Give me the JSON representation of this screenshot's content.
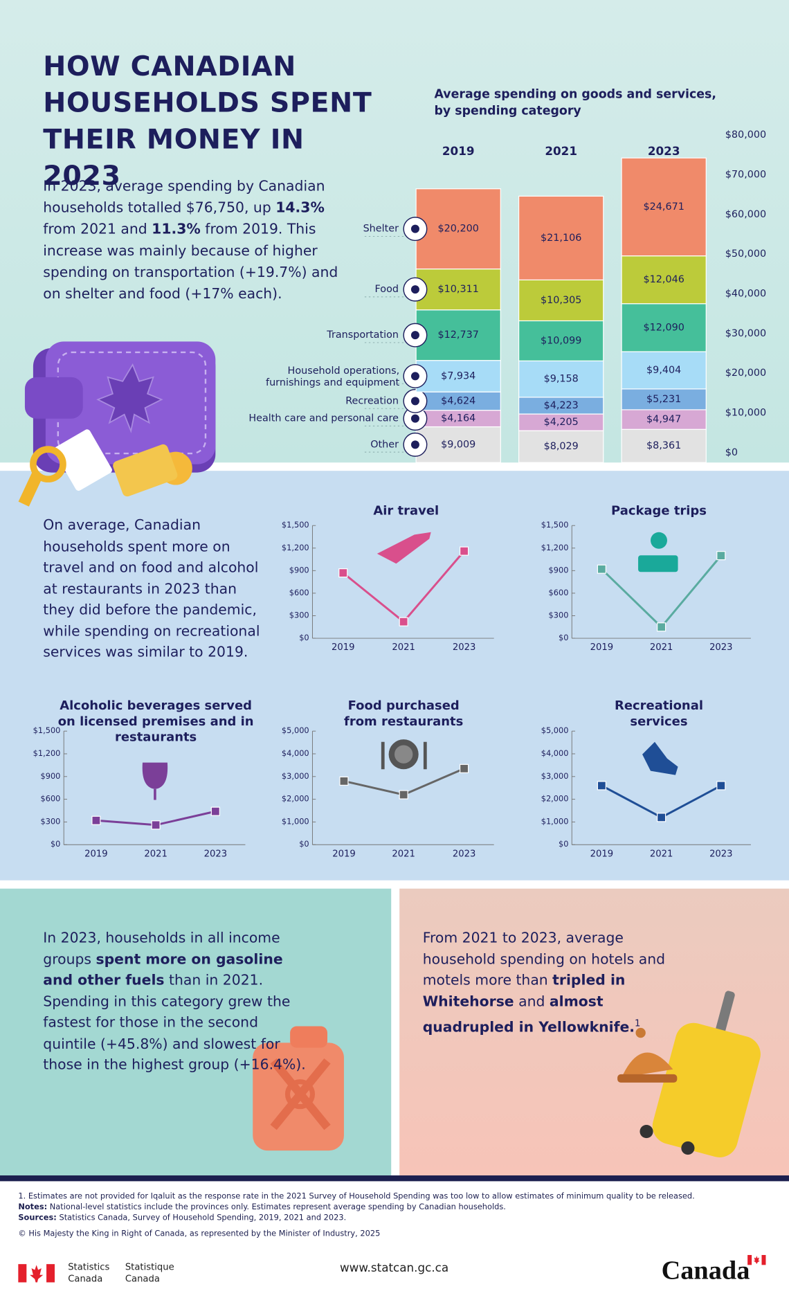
{
  "header": {
    "title": "HOW CANADIAN HOUSEHOLDS SPENT THEIR MONEY IN 2023",
    "intro": [
      {
        "text": "In 2023, average spending by Canadian households totalled $76,750, up ",
        "style": "normal"
      },
      {
        "text": "14.3%",
        "style": "bold"
      },
      {
        "text": " from 2021 and ",
        "style": "normal"
      },
      {
        "text": "11.3%",
        "style": "bold"
      },
      {
        "text": " from 2019. This increase was mainly because of higher spending on transportation (+19.7%) and on shelter and food (+17% each).",
        "style": "normal"
      }
    ]
  },
  "travel_text": "On average, Canadian households spent more on travel and on food and alcohol at restaurants in 2023 than they did before the pandemic, while spending on recreational services was similar to 2019.",
  "panels": {
    "fuel": [
      {
        "text": "In 2023, households in all income groups ",
        "style": "normal"
      },
      {
        "text": "spent more on gasoline and other fuels",
        "style": "bold"
      },
      {
        "text": " than in 2021. Spending in this category grew the fastest for those in the second quintile (+45.8%) and slowest for those in the highest group (+16.4%).",
        "style": "normal"
      }
    ],
    "hotels": [
      {
        "text": "From 2021 to 2023, average household spending on hotels and motels more than ",
        "style": "normal"
      },
      {
        "text": "tripled in Whitehorse",
        "style": "bold"
      },
      {
        "text": " and ",
        "style": "normal"
      },
      {
        "text": "almost quadrupled in Yellowknife.",
        "style": "bold"
      },
      {
        "text": "1",
        "style": "sup"
      }
    ]
  },
  "chart_data": [
    {
      "type": "bar",
      "stacked": true,
      "title": "Average spending on goods and services, by spending category",
      "categories": [
        "2019",
        "2021",
        "2023"
      ],
      "ylim": [
        0,
        80000
      ],
      "yticks": [
        {
          "value": 0,
          "label": "$0"
        },
        {
          "value": 10000,
          "label": "$10,000"
        },
        {
          "value": 20000,
          "label": "$20,000"
        },
        {
          "value": 30000,
          "label": "$30,000"
        },
        {
          "value": 40000,
          "label": "$40,000"
        },
        {
          "value": 50000,
          "label": "$50,000"
        },
        {
          "value": 60000,
          "label": "$60,000"
        },
        {
          "value": 70000,
          "label": "$70,000"
        },
        {
          "value": 80000,
          "label": "$80,000"
        }
      ],
      "series": [
        {
          "name": "Shelter",
          "color": "#f08a6a",
          "values": [
            20200,
            21106,
            24671
          ],
          "value_labels": [
            "$20,200",
            "$21,106",
            "$24,671"
          ]
        },
        {
          "name": "Food",
          "color": "#bccb3a",
          "values": [
            10311,
            10305,
            12046
          ],
          "value_labels": [
            "$10,311",
            "$10,305",
            "$12,046"
          ]
        },
        {
          "name": "Transportation",
          "color": "#45bf9a",
          "values": [
            12737,
            10099,
            12090
          ],
          "value_labels": [
            "$12,737",
            "$10,099",
            "$12,090"
          ]
        },
        {
          "name": "Household operations, furnishings and equipment",
          "color": "#a7dcf7",
          "values": [
            7934,
            9158,
            9404
          ],
          "value_labels": [
            "$7,934",
            "$9,158",
            "$9,404"
          ]
        },
        {
          "name": "Recreation",
          "color": "#7aaee0",
          "values": [
            4624,
            4223,
            5231
          ],
          "value_labels": [
            "$4,624",
            "$4,223",
            "$5,231"
          ]
        },
        {
          "name": "Health care and personal care",
          "color": "#d7a8d4",
          "values": [
            4164,
            4205,
            4947
          ],
          "value_labels": [
            "$4,164",
            "$4,205",
            "$4,947"
          ]
        },
        {
          "name": "Other",
          "color": "#e2e2e2",
          "values": [
            9009,
            8029,
            8361
          ],
          "value_labels": [
            "$9,009",
            "$8,029",
            "$8,361"
          ]
        }
      ]
    },
    {
      "type": "line",
      "title": "Air travel",
      "color": "#d94f8c",
      "categories": [
        "2019",
        "2021",
        "2023"
      ],
      "values": [
        870,
        220,
        1160
      ],
      "ylim": [
        0,
        1500
      ],
      "yticks": [
        {
          "value": 0,
          "label": "$0"
        },
        {
          "value": 300,
          "label": "$300"
        },
        {
          "value": 600,
          "label": "$600"
        },
        {
          "value": 900,
          "label": "$900"
        },
        {
          "value": 1200,
          "label": "$1,200"
        },
        {
          "value": 1500,
          "label": "$1,500"
        }
      ]
    },
    {
      "type": "line",
      "title": "Package trips",
      "color": "#5aaba0",
      "categories": [
        "2019",
        "2021",
        "2023"
      ],
      "values": [
        920,
        150,
        1100
      ],
      "ylim": [
        0,
        1500
      ],
      "yticks": [
        {
          "value": 0,
          "label": "$0"
        },
        {
          "value": 300,
          "label": "$300"
        },
        {
          "value": 600,
          "label": "$600"
        },
        {
          "value": 900,
          "label": "$900"
        },
        {
          "value": 1200,
          "label": "$1,200"
        },
        {
          "value": 1500,
          "label": "$1,500"
        }
      ]
    },
    {
      "type": "line",
      "title": "Alcoholic beverages served on licensed premises and  in restaurants",
      "color": "#7b3f98",
      "categories": [
        "2019",
        "2021",
        "2023"
      ],
      "values": [
        320,
        260,
        440
      ],
      "ylim": [
        0,
        1500
      ],
      "yticks": [
        {
          "value": 0,
          "label": "$0"
        },
        {
          "value": 300,
          "label": "$300"
        },
        {
          "value": 600,
          "label": "$600"
        },
        {
          "value": 900,
          "label": "$900"
        },
        {
          "value": 1200,
          "label": "$1,200"
        },
        {
          "value": 1500,
          "label": "$1,500"
        }
      ]
    },
    {
      "type": "line",
      "title": "Food purchased from restaurants",
      "color": "#666666",
      "categories": [
        "2019",
        "2021",
        "2023"
      ],
      "values": [
        2800,
        2200,
        3350
      ],
      "ylim": [
        0,
        5000
      ],
      "yticks": [
        {
          "value": 0,
          "label": "$0"
        },
        {
          "value": 1000,
          "label": "$1,000"
        },
        {
          "value": 2000,
          "label": "$2,000"
        },
        {
          "value": 3000,
          "label": "$3,000"
        },
        {
          "value": 4000,
          "label": "$4,000"
        },
        {
          "value": 5000,
          "label": "$5,000"
        }
      ]
    },
    {
      "type": "line",
      "title": "Recreational services",
      "color": "#1f4e96",
      "categories": [
        "2019",
        "2021",
        "2023"
      ],
      "values": [
        2600,
        1200,
        2600
      ],
      "ylim": [
        0,
        5000
      ],
      "yticks": [
        {
          "value": 0,
          "label": "$0"
        },
        {
          "value": 1000,
          "label": "$1,000"
        },
        {
          "value": 2000,
          "label": "$2,000"
        },
        {
          "value": 3000,
          "label": "$3,000"
        },
        {
          "value": 4000,
          "label": "$4,000"
        },
        {
          "value": 5000,
          "label": "$5,000"
        }
      ]
    }
  ],
  "footer": {
    "footnote": "1. Estimates are not provided for Iqaluit as the response rate in the 2021 Survey of Household Spending was too low to allow estimates of minimum quality to be released.",
    "notes_label": "Notes:",
    "notes": "National-level statistics include the provinces only. Estimates represent average spending by Canadian households.",
    "sources_label": "Sources:",
    "sources": "Statistics Canada, Survey of Household Spending, 2019, 2021 and 2023.",
    "copyright": "© His Majesty the King in Right of Canada, as represented by the Minister of Industry, 2025",
    "agency_en": "Statistics Canada",
    "agency_fr": "Statistique Canada",
    "website": "www.statcan.gc.ca",
    "wordmark": "Canada"
  }
}
